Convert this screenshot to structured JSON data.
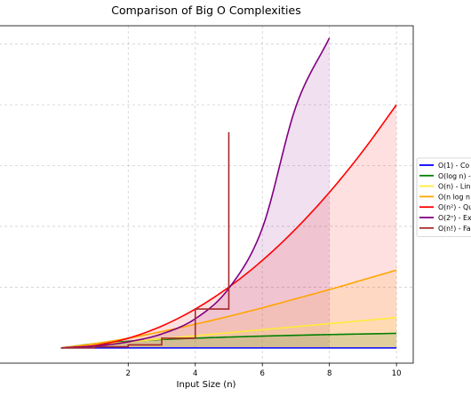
{
  "chart_data": {
    "type": "line",
    "title": "Comparison of Big O Complexities",
    "xlabel": "Input Size (n)",
    "ylabel": "",
    "xlim": [
      -1.85,
      10.5
    ],
    "ylim": [
      -2.5,
      53
    ],
    "xticks": [
      2,
      4,
      6,
      8,
      10
    ],
    "grid": true,
    "grid_y_values": [
      10,
      20,
      30,
      40,
      50
    ],
    "legend_placement": "right, outside plot, cut off by image edge",
    "series": [
      {
        "name": "O(1) - Co",
        "color": "#0000ff",
        "fill": false,
        "step": false,
        "x": [
          0,
          10
        ],
        "y": [
          0,
          0
        ]
      },
      {
        "name": "O(log n) -",
        "color": "#008000",
        "fill": true,
        "step": false,
        "x": [
          0,
          1,
          2,
          3,
          4,
          5,
          6,
          7,
          8,
          9,
          10
        ],
        "y": [
          0,
          0.69,
          1.1,
          1.39,
          1.61,
          1.79,
          1.95,
          2.08,
          2.2,
          2.3,
          2.4
        ]
      },
      {
        "name": "O(n) - Lin",
        "color": "#ffeb3b",
        "fill": true,
        "step": false,
        "x": [
          0,
          1,
          2,
          3,
          4,
          5,
          6,
          7,
          8,
          9,
          10
        ],
        "y": [
          0,
          0.5,
          1,
          1.5,
          2,
          2.5,
          3,
          3.5,
          4,
          4.5,
          5
        ]
      },
      {
        "name": "O(n log n",
        "color": "#ffa500",
        "fill": true,
        "step": false,
        "x": [
          0,
          1,
          2,
          3,
          4,
          5,
          6,
          7,
          8,
          9,
          10
        ],
        "y": [
          0,
          0.7,
          1.6,
          2.7,
          3.9,
          5.2,
          6.6,
          8.1,
          9.6,
          11.2,
          12.8
        ]
      },
      {
        "name": "O(n²) - Qu",
        "color": "#ff0000",
        "fill": true,
        "step": false,
        "x": [
          0,
          1,
          2,
          3,
          4,
          5,
          6,
          7,
          8,
          9,
          10
        ],
        "y": [
          0,
          0.4,
          1.6,
          3.6,
          6.4,
          10,
          14.4,
          19.6,
          25.6,
          32.4,
          40
        ]
      },
      {
        "name": "O(2ⁿ) - Ex",
        "color": "#800080",
        "fill": true,
        "step": false,
        "x": [
          0,
          1,
          2,
          3,
          4,
          5,
          6,
          7,
          8
        ],
        "y": [
          0,
          0.3,
          1.0,
          2.3,
          4.8,
          9.8,
          19.7,
          39.7,
          51
        ]
      },
      {
        "name": "O(n!) - Fa",
        "color": "#a52a2a",
        "fill": false,
        "step": true,
        "x": [
          0,
          1,
          2,
          3,
          4,
          5
        ],
        "y": [
          0,
          0.2,
          0.5,
          1.6,
          6.4,
          35.5
        ]
      }
    ]
  }
}
